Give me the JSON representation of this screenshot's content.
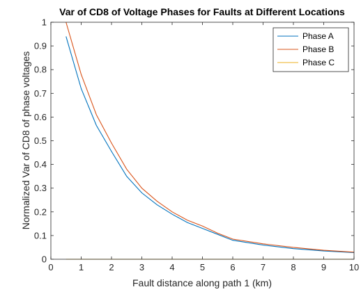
{
  "chart_data": {
    "type": "line",
    "title": "Var of CD8 of Voltage Phases for Faults at Different Locations",
    "xlabel": "Fault distance along path 1 (km)",
    "ylabel": "Normalized Var of CD8 of phase voltages",
    "xlim": [
      0,
      10
    ],
    "ylim": [
      0,
      1
    ],
    "xticks": [
      0,
      1,
      2,
      3,
      4,
      5,
      6,
      7,
      8,
      9,
      10
    ],
    "yticks": [
      0,
      0.1,
      0.2,
      0.3,
      0.4,
      0.5,
      0.6,
      0.7,
      0.8,
      0.9,
      1
    ],
    "xtick_labels": [
      "0",
      "1",
      "2",
      "3",
      "4",
      "5",
      "6",
      "7",
      "8",
      "9",
      "10"
    ],
    "ytick_labels": [
      "0",
      "0.1",
      "0.2",
      "0.3",
      "0.4",
      "0.5",
      "0.6",
      "0.7",
      "0.8",
      "0.9",
      "1"
    ],
    "grid": false,
    "legend_position": "top-right",
    "series": [
      {
        "name": "Phase A",
        "color": "#0072BD",
        "x": [
          0.5,
          1.0,
          1.5,
          2.0,
          2.5,
          3.0,
          3.5,
          4.0,
          4.5,
          5.0,
          5.5,
          6.0,
          7.0,
          8.0,
          9.0,
          10.0
        ],
        "y": [
          0.94,
          0.72,
          0.565,
          0.455,
          0.35,
          0.28,
          0.23,
          0.19,
          0.155,
          0.13,
          0.105,
          0.08,
          0.06,
          0.045,
          0.035,
          0.028
        ]
      },
      {
        "name": "Phase B",
        "color": "#D95319",
        "x": [
          0.5,
          1.0,
          1.5,
          2.0,
          2.5,
          3.0,
          3.5,
          4.0,
          4.5,
          5.0,
          5.5,
          6.0,
          7.0,
          8.0,
          9.0,
          10.0
        ],
        "y": [
          1.0,
          0.78,
          0.61,
          0.49,
          0.38,
          0.3,
          0.245,
          0.2,
          0.165,
          0.14,
          0.11,
          0.085,
          0.065,
          0.05,
          0.038,
          0.03
        ]
      },
      {
        "name": "Phase C",
        "color": "#EDB120",
        "x": [
          0.5,
          1.0,
          2.0,
          3.0,
          4.0,
          5.0,
          6.0,
          7.0,
          8.0,
          9.0,
          10.0
        ],
        "y": [
          0,
          0,
          0,
          0,
          0,
          0,
          0,
          0,
          0,
          0,
          0
        ]
      }
    ]
  }
}
